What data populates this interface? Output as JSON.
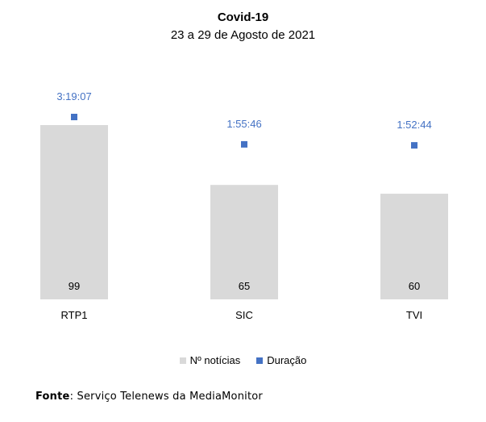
{
  "chart_data": {
    "type": "bar",
    "title": "Covid-19",
    "subtitle": "23 a 29 de Agosto de 2021",
    "categories": [
      "RTP1",
      "SIC",
      "TVI"
    ],
    "series": [
      {
        "name": "Nº notícias",
        "type": "bar",
        "values": [
          99,
          65,
          60
        ],
        "color": "#d9d9d9"
      },
      {
        "name": "Duração",
        "type": "scatter",
        "values": [
          "3:19:07",
          "1:55:46",
          "1:52:44"
        ],
        "color": "#4472c4"
      }
    ],
    "grid": false,
    "legend": "bottom"
  },
  "source": {
    "label": "Fonte",
    "text": "Serviço Telenews da MediaMonitor"
  }
}
